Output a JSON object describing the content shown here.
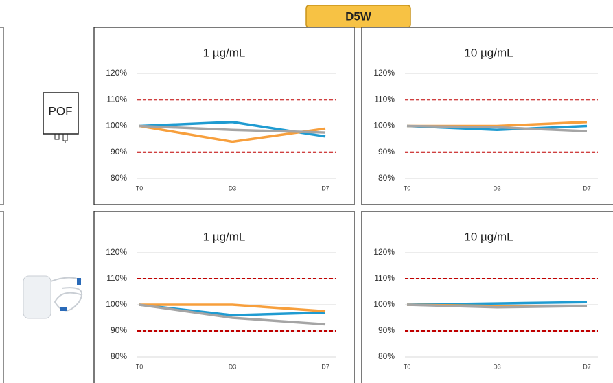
{
  "header": {
    "title": "D5W"
  },
  "row_labels": [
    "POF"
  ],
  "chart_data": [
    {
      "type": "line",
      "title": "1 µg/mL",
      "categories": [
        "T0",
        "D3",
        "D7"
      ],
      "series": [
        {
          "color": "#1f9bd1",
          "values": [
            100,
            101.5,
            96
          ]
        },
        {
          "color": "#f79f3c",
          "values": [
            100,
            94,
            99
          ]
        },
        {
          "color": "#a5a5a5",
          "values": [
            100,
            98.5,
            97.5
          ]
        }
      ],
      "ylim": [
        80,
        120
      ],
      "yticks": [
        {
          "value": 80,
          "label": "80%"
        },
        {
          "value": 90,
          "label": "90%"
        },
        {
          "value": 100,
          "label": "100%"
        },
        {
          "value": 110,
          "label": "110%"
        },
        {
          "value": 120,
          "label": "120%"
        }
      ],
      "grid": true,
      "reference_lines": [
        90,
        110
      ],
      "reference_color": "#c00000"
    },
    {
      "type": "line",
      "title": "10 µg/mL",
      "categories": [
        "T0",
        "D3",
        "D7"
      ],
      "series": [
        {
          "color": "#1f9bd1",
          "values": [
            100,
            98.5,
            100
          ]
        },
        {
          "color": "#f79f3c",
          "values": [
            100,
            100,
            101.5
          ]
        },
        {
          "color": "#a5a5a5",
          "values": [
            100,
            99.5,
            98
          ]
        }
      ],
      "ylim": [
        80,
        120
      ],
      "yticks": [
        {
          "value": 80,
          "label": "80%"
        },
        {
          "value": 90,
          "label": "90%"
        },
        {
          "value": 100,
          "label": "100%"
        },
        {
          "value": 110,
          "label": "110%"
        },
        {
          "value": 120,
          "label": "120%"
        }
      ],
      "grid": true,
      "reference_lines": [
        90,
        110
      ],
      "reference_color": "#c00000"
    },
    {
      "type": "line",
      "title": "1 µg/mL",
      "categories": [
        "T0",
        "D3",
        "D7"
      ],
      "series": [
        {
          "color": "#1f9bd1",
          "values": [
            100,
            96,
            97
          ]
        },
        {
          "color": "#f79f3c",
          "values": [
            100,
            100,
            97.5
          ]
        },
        {
          "color": "#a5a5a5",
          "values": [
            100,
            95,
            92.5
          ]
        }
      ],
      "ylim": [
        80,
        120
      ],
      "yticks": [
        {
          "value": 80,
          "label": "80%"
        },
        {
          "value": 90,
          "label": "90%"
        },
        {
          "value": 100,
          "label": "100%"
        },
        {
          "value": 110,
          "label": "110%"
        },
        {
          "value": 120,
          "label": "120%"
        }
      ],
      "grid": true,
      "reference_lines": [
        90,
        110
      ],
      "reference_color": "#c00000"
    },
    {
      "type": "line",
      "title": "10 µg/mL",
      "categories": [
        "T0",
        "D3",
        "D7"
      ],
      "series": [
        {
          "color": "#1f9bd1",
          "values": [
            100,
            100.5,
            101
          ]
        },
        {
          "color": "#f79f3c",
          "values": [
            100,
            99.5,
            99.5
          ]
        },
        {
          "color": "#a5a5a5",
          "values": [
            100,
            99,
            99.5
          ]
        }
      ],
      "ylim": [
        80,
        120
      ],
      "yticks": [
        {
          "value": 80,
          "label": "80%"
        },
        {
          "value": 90,
          "label": "90%"
        },
        {
          "value": 100,
          "label": "100%"
        },
        {
          "value": 110,
          "label": "110%"
        },
        {
          "value": 120,
          "label": "120%"
        }
      ],
      "grid": true,
      "reference_lines": [
        90,
        110
      ],
      "reference_color": "#c00000"
    }
  ]
}
